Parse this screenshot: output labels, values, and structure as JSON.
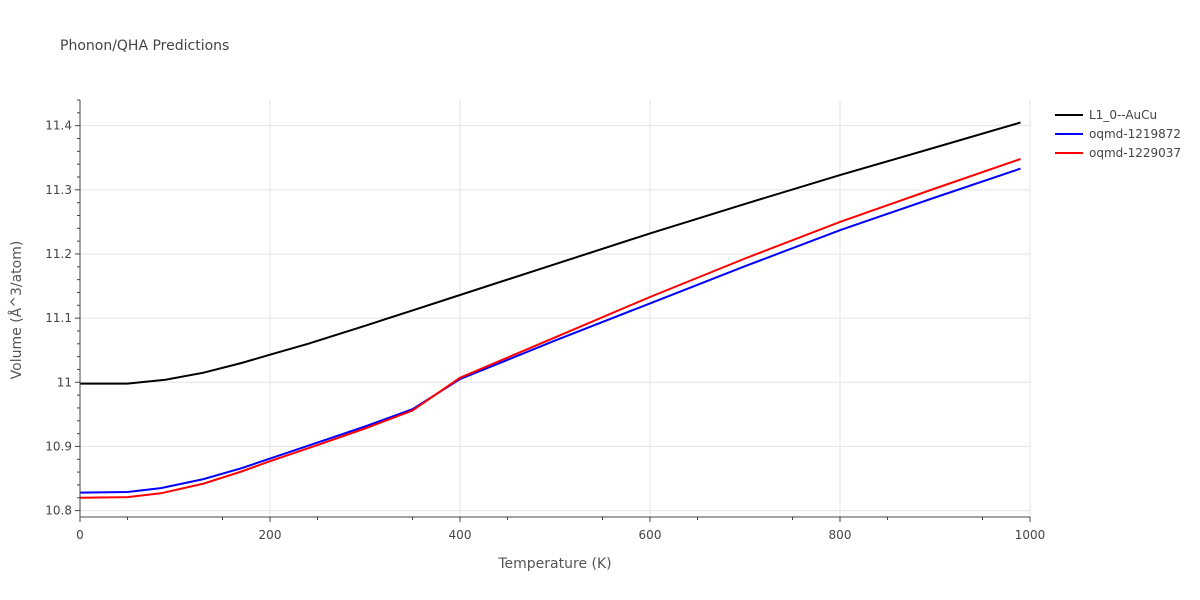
{
  "chart_data": {
    "type": "line",
    "title": "Phonon/QHA Predictions",
    "xlabel": "Temperature (K)",
    "ylabel": "Volume (Å^3/atom)",
    "xlim": [
      0,
      1000
    ],
    "ylim": [
      10.79,
      11.44
    ],
    "xticks": [
      0,
      200,
      400,
      600,
      800,
      1000
    ],
    "xtick_labels": [
      "0",
      "200",
      "400",
      "600",
      "800",
      "1000"
    ],
    "yticks": [
      10.8,
      10.9,
      11.0,
      11.1,
      11.2,
      11.3,
      11.4
    ],
    "ytick_labels": [
      "10.8",
      "10.9",
      "11",
      "11.1",
      "11.2",
      "11.3",
      "11.4"
    ],
    "grid": true,
    "legend_position": "top-right",
    "series": [
      {
        "name": "L1_0--AuCu",
        "color": "#000000",
        "x": [
          0,
          50,
          90,
          130,
          170,
          200,
          240,
          300,
          350,
          400,
          500,
          600,
          700,
          800,
          900,
          990
        ],
        "y": [
          10.998,
          10.998,
          11.004,
          11.015,
          11.03,
          11.043,
          11.06,
          11.088,
          11.112,
          11.136,
          11.184,
          11.232,
          11.278,
          11.323,
          11.366,
          11.405
        ]
      },
      {
        "name": "oqmd-1219872",
        "color": "#0000ff",
        "x": [
          0,
          50,
          85,
          130,
          170,
          200,
          250,
          300,
          350,
          400,
          500,
          600,
          700,
          800,
          900,
          990
        ],
        "y": [
          10.828,
          10.829,
          10.835,
          10.849,
          10.866,
          10.881,
          10.906,
          10.931,
          10.958,
          11.005,
          11.065,
          11.123,
          11.181,
          11.237,
          11.288,
          11.333
        ]
      },
      {
        "name": "oqmd-1229037",
        "color": "#ff0000",
        "x": [
          0,
          50,
          85,
          130,
          170,
          200,
          250,
          300,
          350,
          400,
          500,
          600,
          700,
          800,
          900,
          990
        ],
        "y": [
          10.82,
          10.821,
          10.827,
          10.842,
          10.861,
          10.877,
          10.902,
          10.928,
          10.956,
          11.007,
          11.07,
          11.133,
          11.193,
          11.25,
          11.302,
          11.348
        ]
      }
    ]
  }
}
